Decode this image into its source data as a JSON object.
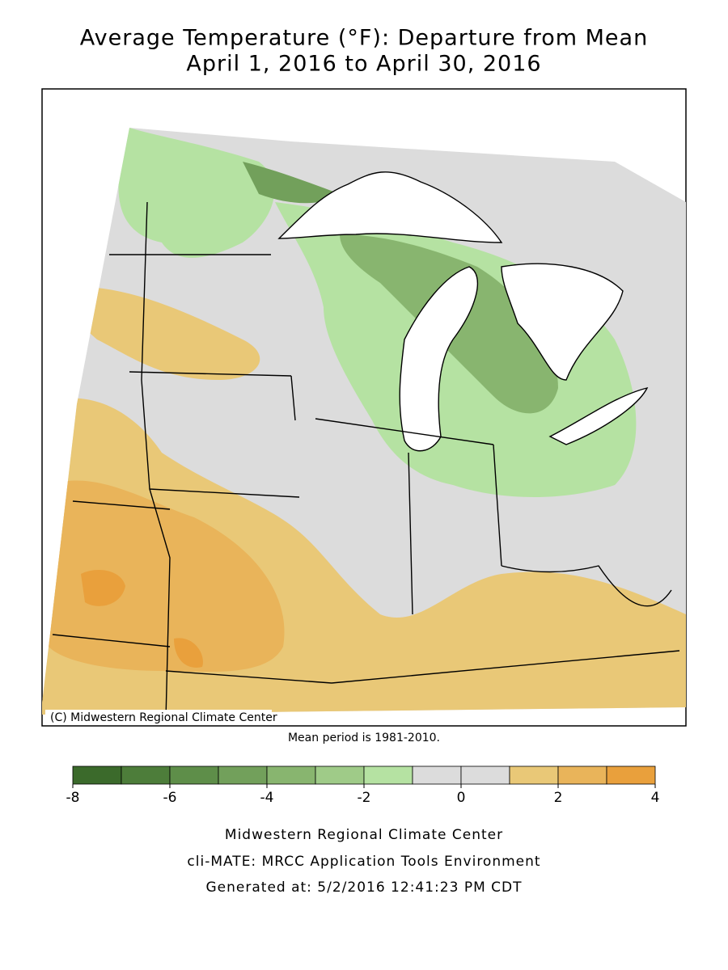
{
  "title": [
    "Average Temperature (°F): Departure from Mean",
    "April 1, 2016 to April 30, 2016"
  ],
  "map": {
    "credit": "(C) Midwestern Regional Climate Center",
    "note": "Mean period is 1981-2010."
  },
  "legend": {
    "bins": [
      -8,
      -7,
      -6,
      -5,
      -4,
      -3,
      -2,
      -1,
      0,
      1,
      2,
      3,
      4
    ],
    "colors": [
      "#3b6a2b",
      "#4d7d3a",
      "#5e8e49",
      "#72a05b",
      "#88b56f",
      "#9fcb88",
      "#b5e2a2",
      "#dcdcdc",
      "#dcdcdc",
      "#e9c877",
      "#e9b45a",
      "#e9a03c"
    ],
    "ticks": [
      -8,
      -6,
      -4,
      -2,
      0,
      2,
      4
    ]
  },
  "footer": [
    "Midwestern Regional Climate Center",
    "cli-MATE: MRCC Application Tools Environment",
    "Generated at: 5/2/2016 12:41:23 PM CDT"
  ]
}
